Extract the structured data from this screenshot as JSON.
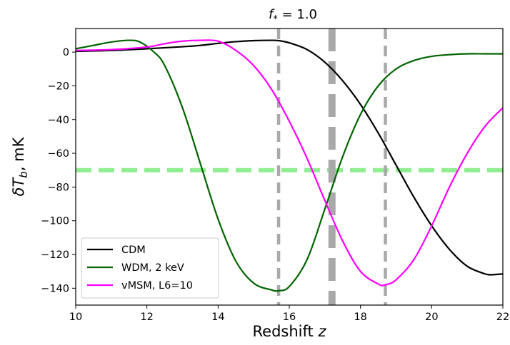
{
  "chart_data": {
    "type": "line",
    "title": "f* = 1.0",
    "title_parts": {
      "base": "f",
      "sub": "*",
      "rest": " = 1.0"
    },
    "xlabel": "Redshift z",
    "xlabel_parts": {
      "text": "Redshift ",
      "var": "z"
    },
    "ylabel": "δT_b, mK",
    "ylabel_parts": {
      "sym": "δT",
      "sub": "b",
      "rest": ", mK"
    },
    "xlim": [
      10,
      22
    ],
    "ylim": [
      -150,
      14
    ],
    "xticks": [
      10,
      12,
      14,
      16,
      18,
      20,
      22
    ],
    "xtick_labels": [
      "10",
      "12",
      "14",
      "16",
      "18",
      "20",
      "22"
    ],
    "yticks": [
      0,
      -20,
      -40,
      -60,
      -80,
      -100,
      -120,
      -140
    ],
    "ytick_labels": [
      "0",
      "−20",
      "−40",
      "−60",
      "−80",
      "−100",
      "−120",
      "−140"
    ],
    "legend_position": "lower-left",
    "grid": false,
    "series": [
      {
        "name": "CDM",
        "color": "#000000",
        "x": [
          10,
          11,
          12,
          13,
          13.5,
          14,
          14.5,
          15,
          15.5,
          15.7,
          16,
          16.5,
          17,
          17.5,
          18,
          18.5,
          19,
          19.5,
          20,
          20.5,
          21,
          21.5,
          21.7,
          22
        ],
        "y": [
          0.5,
          1,
          2,
          3.2,
          4,
          5.2,
          6.2,
          6.8,
          7,
          6.8,
          5.5,
          1.5,
          -6,
          -17,
          -31,
          -48,
          -67,
          -86,
          -103,
          -117,
          -127,
          -131.5,
          -132,
          -131.5
        ]
      },
      {
        "name": "WDM, 2 keV",
        "color": "#006400",
        "x": [
          10,
          10.5,
          11,
          11.5,
          11.8,
          12.2,
          12.5,
          13,
          13.5,
          14,
          14.5,
          15,
          15.5,
          15.7,
          16,
          16.5,
          17,
          17.5,
          18,
          18.5,
          19,
          19.5,
          20,
          20.5,
          21,
          21.5,
          22
        ],
        "y": [
          2,
          4,
          6,
          7,
          6,
          0,
          -8,
          -33,
          -66,
          -99,
          -124,
          -137,
          -141,
          -141.5,
          -139,
          -123,
          -93,
          -62,
          -37,
          -20,
          -10,
          -5,
          -2.5,
          -1.5,
          -1,
          -1,
          -1
        ]
      },
      {
        "name": "vMSM, L6=10",
        "color": "#ff00ff",
        "x": [
          10,
          11,
          12,
          12.5,
          13,
          13.5,
          14,
          14.5,
          15,
          15.5,
          16,
          16.5,
          17,
          17.5,
          18,
          18.5,
          18.7,
          19,
          19.5,
          20,
          20.5,
          21,
          21.5,
          22
        ],
        "y": [
          1,
          1.5,
          3,
          5,
          6.5,
          7,
          6.5,
          1,
          -8,
          -22,
          -41,
          -63,
          -88,
          -112,
          -130,
          -137.5,
          -138,
          -135,
          -123,
          -103,
          -80,
          -60,
          -44,
          -33
        ]
      }
    ],
    "reference_lines": [
      {
        "orientation": "horizontal",
        "value": -70,
        "color": "#90ee90",
        "style": "dashed",
        "weight": "thick"
      },
      {
        "orientation": "vertical",
        "value": 15.7,
        "color": "#a9a9a9",
        "style": "dashed",
        "weight": "normal"
      },
      {
        "orientation": "vertical",
        "value": 17.2,
        "color": "#a9a9a9",
        "style": "dashed",
        "weight": "thick"
      },
      {
        "orientation": "vertical",
        "value": 18.7,
        "color": "#a9a9a9",
        "style": "dashed",
        "weight": "normal"
      }
    ]
  }
}
